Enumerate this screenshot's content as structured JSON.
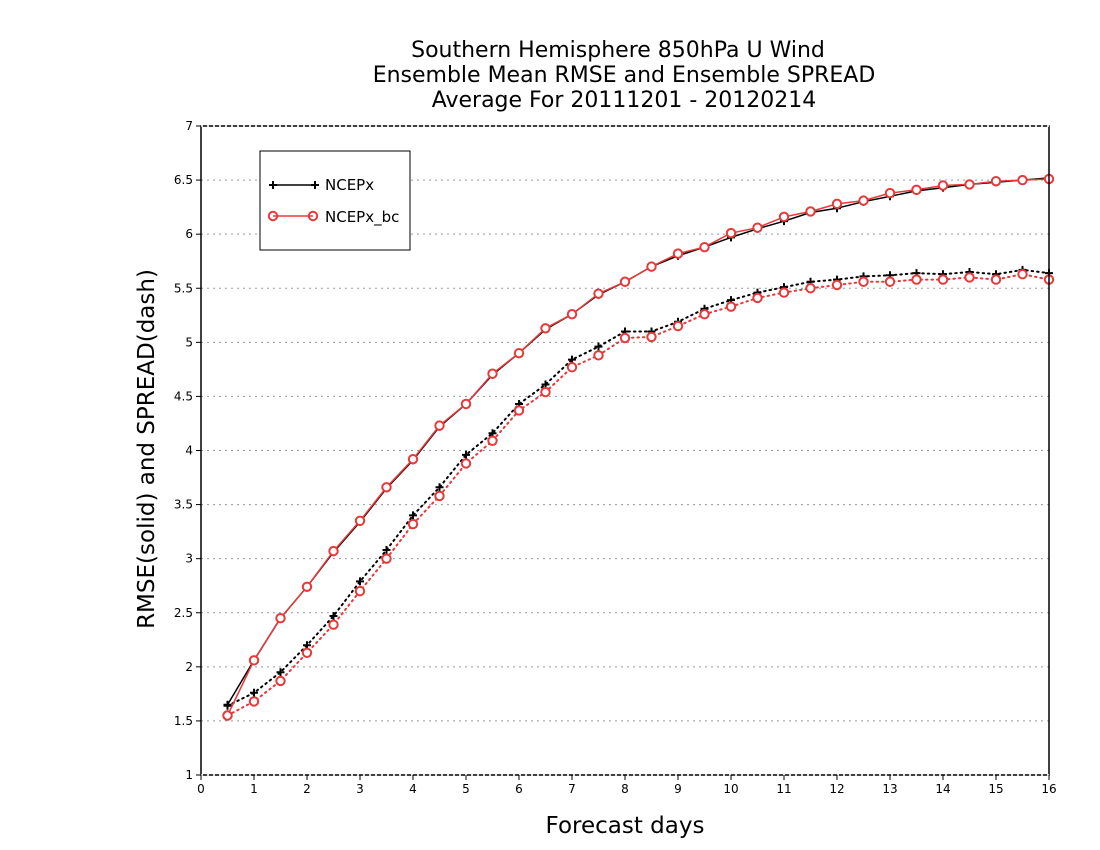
{
  "chart_data": {
    "type": "line",
    "title_lines": [
      "Southern Hemisphere 850hPa U Wind",
      "Ensemble Mean RMSE and Ensemble SPREAD",
      "Average For 20111201 - 20120214"
    ],
    "xlabel": "Forecast days",
    "ylabel": "RMSE(solid) and SPREAD(dash)",
    "xlim": [
      0,
      16
    ],
    "ylim": [
      1,
      7
    ],
    "x_ticks": [
      "0",
      "1",
      "2",
      "3",
      "4",
      "5",
      "6",
      "7",
      "8",
      "9",
      "10",
      "11",
      "12",
      "13",
      "14",
      "15",
      "16"
    ],
    "y_ticks": [
      "1",
      "1.5",
      "2",
      "2.5",
      "3",
      "3.5",
      "4",
      "4.5",
      "5",
      "5.5",
      "6",
      "6.5",
      "7"
    ],
    "grid": "horizontal dotted",
    "legend_position": "top-left",
    "x": [
      0.5,
      1,
      1.5,
      2,
      2.5,
      3,
      3.5,
      4,
      4.5,
      5,
      5.5,
      6,
      6.5,
      7,
      7.5,
      8,
      8.5,
      9,
      9.5,
      10,
      10.5,
      11,
      11.5,
      12,
      12.5,
      13,
      13.5,
      14,
      14.5,
      15,
      15.5,
      16
    ],
    "series": [
      {
        "name": "NCEPx",
        "metric": "RMSE",
        "color": "#000000",
        "marker": "plus",
        "linestyle": "solid",
        "values": [
          1.65,
          2.06,
          2.45,
          2.74,
          3.06,
          3.34,
          3.65,
          3.91,
          4.22,
          4.43,
          4.7,
          4.9,
          5.12,
          5.26,
          5.44,
          5.56,
          5.7,
          5.8,
          5.88,
          5.97,
          6.05,
          6.12,
          6.2,
          6.24,
          6.3,
          6.35,
          6.4,
          6.43,
          6.46,
          6.48,
          6.5,
          6.52
        ]
      },
      {
        "name": "NCEPx_bc",
        "metric": "RMSE",
        "color": "#e8383a",
        "marker": "circle",
        "linestyle": "solid",
        "values": [
          1.55,
          2.06,
          2.45,
          2.74,
          3.07,
          3.35,
          3.66,
          3.92,
          4.23,
          4.43,
          4.71,
          4.9,
          5.13,
          5.26,
          5.45,
          5.56,
          5.7,
          5.82,
          5.88,
          6.01,
          6.06,
          6.16,
          6.21,
          6.28,
          6.31,
          6.38,
          6.41,
          6.45,
          6.46,
          6.49,
          6.5,
          6.51
        ]
      },
      {
        "name": "NCEPx",
        "metric": "SPREAD",
        "color": "#000000",
        "marker": "plus",
        "linestyle": "dotted",
        "values": [
          1.64,
          1.76,
          1.95,
          2.2,
          2.47,
          2.79,
          3.08,
          3.4,
          3.66,
          3.96,
          4.16,
          4.43,
          4.61,
          4.84,
          4.96,
          5.1,
          5.1,
          5.19,
          5.31,
          5.39,
          5.46,
          5.51,
          5.56,
          5.58,
          5.61,
          5.62,
          5.64,
          5.63,
          5.65,
          5.63,
          5.67,
          5.64
        ]
      },
      {
        "name": "NCEPx_bc",
        "metric": "SPREAD",
        "color": "#e8383a",
        "marker": "circle",
        "linestyle": "dotted",
        "values": [
          1.55,
          1.68,
          1.87,
          2.13,
          2.39,
          2.7,
          3.0,
          3.32,
          3.58,
          3.88,
          4.09,
          4.37,
          4.54,
          4.77,
          4.88,
          5.04,
          5.05,
          5.15,
          5.26,
          5.33,
          5.41,
          5.46,
          5.5,
          5.53,
          5.56,
          5.56,
          5.58,
          5.58,
          5.6,
          5.58,
          5.63,
          5.58
        ]
      }
    ],
    "legend": [
      {
        "label": "NCEPx",
        "color": "#000000",
        "marker": "plus"
      },
      {
        "label": "NCEPx_bc",
        "color": "#e8383a",
        "marker": "circle"
      }
    ]
  }
}
